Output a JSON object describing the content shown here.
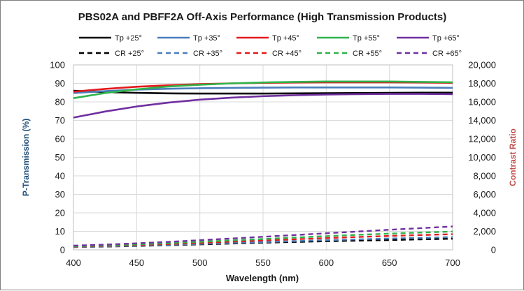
{
  "chart_data": {
    "type": "line",
    "title": "PBS02A and PBFF2A Off-Axis Performance (High Transmission Products)",
    "xlabel": "Wavelength (nm)",
    "ylabel": "P-Transmission (%)",
    "y2label": "Contrast Ratio",
    "xlim": [
      400,
      700
    ],
    "ylim": [
      0,
      100
    ],
    "y2lim": [
      0,
      20000
    ],
    "x_ticks": [
      "400",
      "450",
      "500",
      "550",
      "600",
      "650",
      "700"
    ],
    "y_ticks": [
      "0",
      "10",
      "20",
      "30",
      "40",
      "50",
      "60",
      "70",
      "80",
      "90",
      "100"
    ],
    "y2_ticks": [
      "0",
      "2,000",
      "4,000",
      "6,000",
      "8,000",
      "10,000",
      "12,000",
      "14,000",
      "16,000",
      "18,000",
      "20,000"
    ],
    "grid": true,
    "legend_position": "top",
    "colors": {
      "axis_y_title": "#1f4e79",
      "axis_y2_title": "#c0504d"
    },
    "x": [
      400,
      425,
      450,
      475,
      500,
      525,
      550,
      575,
      600,
      625,
      650,
      675,
      700
    ],
    "series": [
      {
        "name": "Tp +25°",
        "axis": "left",
        "style": "solid",
        "color": "#000000",
        "values": [
          86.0,
          85.3,
          84.9,
          84.6,
          84.5,
          84.5,
          84.5,
          84.6,
          84.7,
          84.8,
          84.9,
          85.0,
          85.0
        ]
      },
      {
        "name": "Tp +35°",
        "axis": "left",
        "style": "solid",
        "color": "#4a7ebb",
        "values": [
          84.8,
          85.8,
          86.6,
          87.1,
          87.4,
          87.6,
          87.7,
          87.8,
          87.8,
          87.8,
          87.8,
          87.7,
          87.6
        ]
      },
      {
        "name": "Tp +45°",
        "axis": "left",
        "style": "solid",
        "color": "#e31a1c",
        "values": [
          85.5,
          87.0,
          88.2,
          89.0,
          89.6,
          90.0,
          90.3,
          90.5,
          90.6,
          90.6,
          90.6,
          90.5,
          90.3
        ]
      },
      {
        "name": "Tp +55°",
        "axis": "left",
        "style": "solid",
        "color": "#2fb34a",
        "values": [
          82.0,
          84.8,
          86.8,
          88.3,
          89.3,
          90.0,
          90.5,
          90.8,
          91.0,
          91.0,
          91.0,
          90.8,
          90.6
        ]
      },
      {
        "name": "Tp +65°",
        "axis": "left",
        "style": "solid",
        "color": "#7030a0",
        "values": [
          71.5,
          74.8,
          77.5,
          79.6,
          81.2,
          82.3,
          83.1,
          83.6,
          84.0,
          84.2,
          84.3,
          84.3,
          84.2
        ]
      },
      {
        "name": "CR +25°",
        "axis": "right",
        "style": "dashed",
        "color": "#000000",
        "values": [
          300,
          350,
          420,
          500,
          590,
          680,
          770,
          850,
          930,
          1000,
          1060,
          1130,
          1200
        ]
      },
      {
        "name": "CR +35°",
        "axis": "right",
        "style": "dashed",
        "color": "#4a7ebb",
        "values": [
          310,
          370,
          450,
          540,
          640,
          740,
          840,
          940,
          1040,
          1130,
          1220,
          1300,
          1380
        ]
      },
      {
        "name": "CR +45°",
        "axis": "right",
        "style": "dashed",
        "color": "#e31a1c",
        "values": [
          340,
          420,
          520,
          630,
          750,
          880,
          1010,
          1140,
          1270,
          1390,
          1500,
          1600,
          1690
        ]
      },
      {
        "name": "CR +55°",
        "axis": "right",
        "style": "dashed",
        "color": "#2fb34a",
        "values": [
          380,
          470,
          590,
          720,
          870,
          1020,
          1170,
          1330,
          1480,
          1620,
          1750,
          1870,
          1980
        ]
      },
      {
        "name": "CR +65°",
        "axis": "right",
        "style": "dashed",
        "color": "#7030a0",
        "values": [
          450,
          560,
          700,
          860,
          1040,
          1220,
          1410,
          1600,
          1790,
          1980,
          2170,
          2350,
          2530
        ]
      }
    ]
  }
}
